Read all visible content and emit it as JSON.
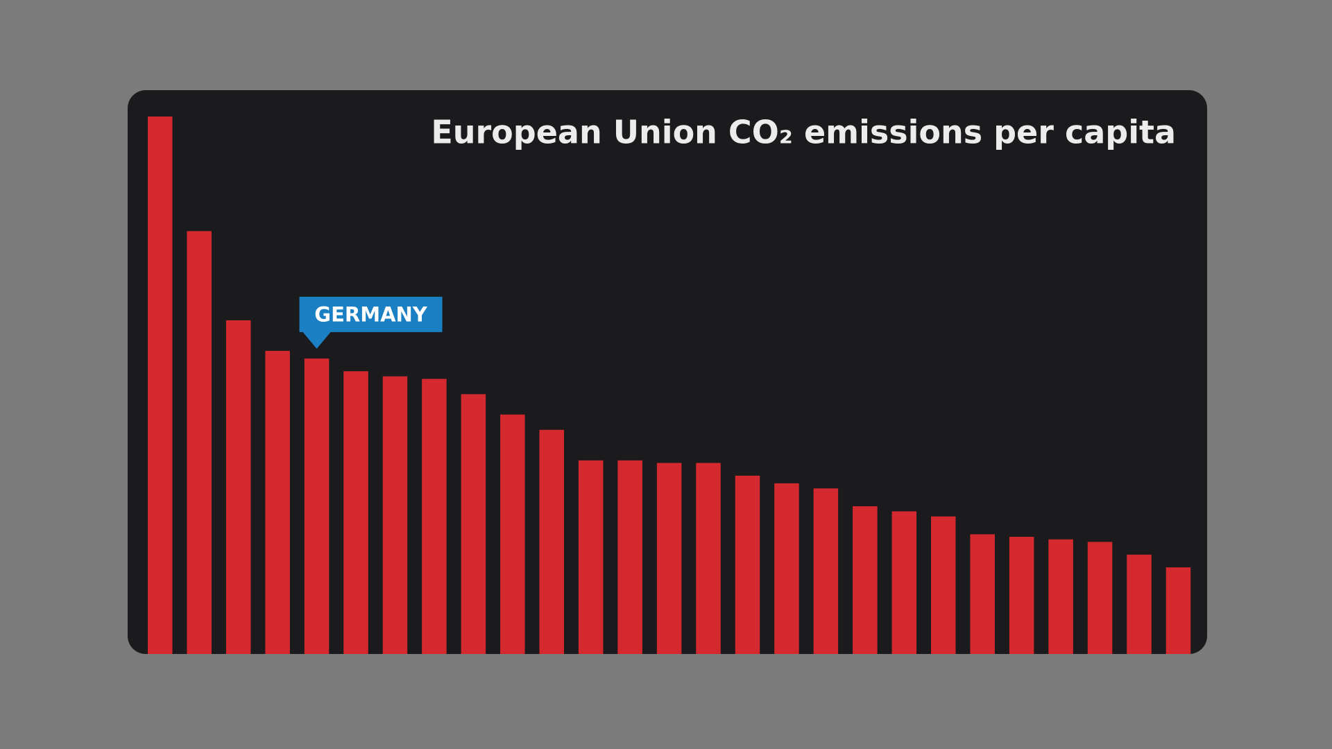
{
  "chart_data": {
    "type": "bar",
    "title": "European Union CO₂ emissions per capita",
    "categories": [
      null,
      null,
      null,
      null,
      "GERMANY",
      null,
      null,
      null,
      null,
      null,
      null,
      null,
      null,
      null,
      null,
      null,
      null,
      null,
      null,
      null,
      null,
      null,
      null,
      null,
      null,
      null,
      null
    ],
    "values": [
      21.1,
      16.6,
      13.1,
      11.9,
      11.6,
      11.1,
      10.9,
      10.8,
      10.2,
      9.4,
      8.8,
      7.6,
      7.6,
      7.5,
      7.5,
      7.0,
      6.7,
      6.5,
      5.8,
      5.6,
      5.4,
      4.7,
      4.6,
      4.5,
      4.4,
      3.9,
      3.4
    ],
    "color": "#d42a2f",
    "ylim": [
      0,
      21.1
    ]
  }
}
